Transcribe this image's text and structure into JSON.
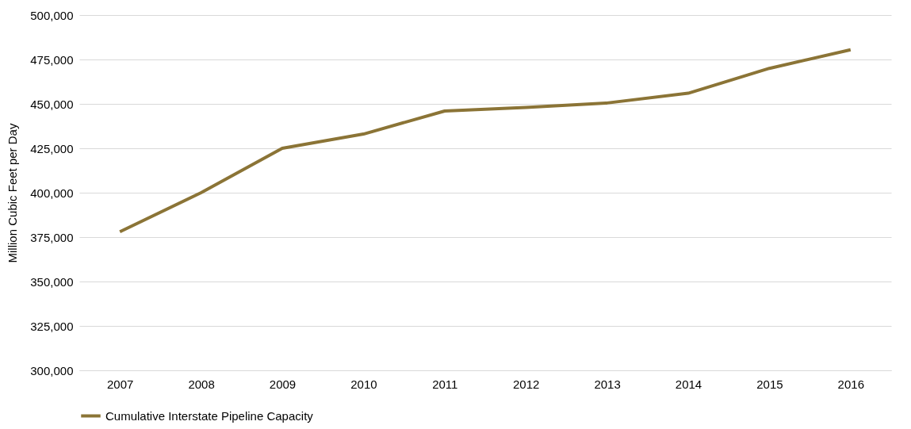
{
  "chart_data": {
    "type": "line",
    "ylabel": "Million Cubic Feet per Day",
    "categories": [
      "2007",
      "2008",
      "2009",
      "2010",
      "2011",
      "2012",
      "2013",
      "2014",
      "2015",
      "2016"
    ],
    "series": [
      {
        "name": "Cumulative Interstate Pipeline Capacity",
        "color": "#8b7436",
        "values": [
          378000,
          400000,
          425000,
          433000,
          446000,
          448000,
          450500,
          456000,
          470000,
          480500
        ]
      }
    ],
    "ylim": [
      300000,
      500000
    ],
    "yticks": [
      {
        "value": 300000,
        "label": "300,000"
      },
      {
        "value": 325000,
        "label": "325,000"
      },
      {
        "value": 350000,
        "label": "350,000"
      },
      {
        "value": 375000,
        "label": "375,000"
      },
      {
        "value": 400000,
        "label": "400,000"
      },
      {
        "value": 425000,
        "label": "425,000"
      },
      {
        "value": 450000,
        "label": "450,000"
      },
      {
        "value": 475000,
        "label": "475,000"
      },
      {
        "value": 500000,
        "label": "500,000"
      }
    ],
    "grid": "y",
    "legend": "bottom",
    "marker": "none",
    "line_style": "solid"
  }
}
